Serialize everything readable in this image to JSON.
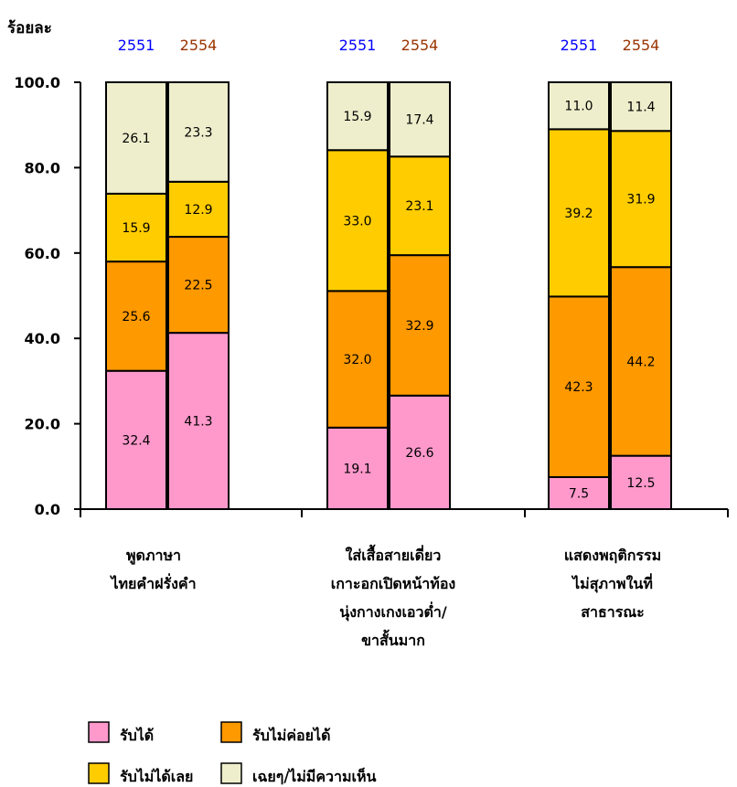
{
  "chart_data": {
    "type": "bar",
    "stacked": true,
    "ylabel": "ร้อยละ",
    "ylim": [
      0,
      100
    ],
    "yticks": [
      "0.0",
      "20.0",
      "40.0",
      "60.0",
      "80.0",
      "100.0"
    ],
    "ytick_values": [
      0,
      20,
      40,
      60,
      80,
      100
    ],
    "grid": false,
    "legend_position": "bottom-left",
    "years": [
      "2551",
      "2554"
    ],
    "year_colors": [
      "#0000ff",
      "#993300"
    ],
    "categories": [
      {
        "lines": [
          "พูดภาษา",
          "ไทยคำฝรั่งคำ"
        ]
      },
      {
        "lines": [
          "ใส่เสื้อสายเดี่ยว",
          "เกาะอกเปิดหน้าท้อง",
          "นุ่งกางเกงเอวต่ำ/",
          "ขาสั้นมาก"
        ]
      },
      {
        "lines": [
          "แสดงพฤติกรรม",
          "ไม่สุภาพในที่",
          "สาธารณะ"
        ]
      }
    ],
    "series": [
      {
        "name": "รับได้",
        "color": "#ff99cc",
        "values": [
          [
            32.4,
            41.3
          ],
          [
            19.1,
            26.6
          ],
          [
            7.5,
            12.5
          ]
        ],
        "labels": [
          [
            "32.4",
            "41.3"
          ],
          [
            "19.1",
            "26.6"
          ],
          [
            "7.5",
            "12.5"
          ]
        ]
      },
      {
        "name": "รับไม่ค่อยได้",
        "color": "#ff9900",
        "values": [
          [
            25.6,
            22.5
          ],
          [
            32.0,
            32.9
          ],
          [
            42.3,
            44.2
          ]
        ],
        "labels": [
          [
            "25.6",
            "22.5"
          ],
          [
            "32.0",
            "32.9"
          ],
          [
            "42.3",
            "44.2"
          ]
        ]
      },
      {
        "name": "รับไม่ได้เลย",
        "color": "#ffcc00",
        "values": [
          [
            15.9,
            12.9
          ],
          [
            33.0,
            23.1
          ],
          [
            39.2,
            31.9
          ]
        ],
        "labels": [
          [
            "15.9",
            "12.9"
          ],
          [
            "33.0",
            "23.1"
          ],
          [
            "39.2",
            "31.9"
          ]
        ]
      },
      {
        "name": "เฉยๆ/ไม่มีความเห็น",
        "color": "#eeeecc",
        "values": [
          [
            26.1,
            23.3
          ],
          [
            15.9,
            17.4
          ],
          [
            11.0,
            11.4
          ]
        ],
        "labels": [
          [
            "26.1",
            "23.3"
          ],
          [
            "15.9",
            "17.4"
          ],
          [
            "11.0",
            "11.4"
          ]
        ]
      }
    ]
  }
}
